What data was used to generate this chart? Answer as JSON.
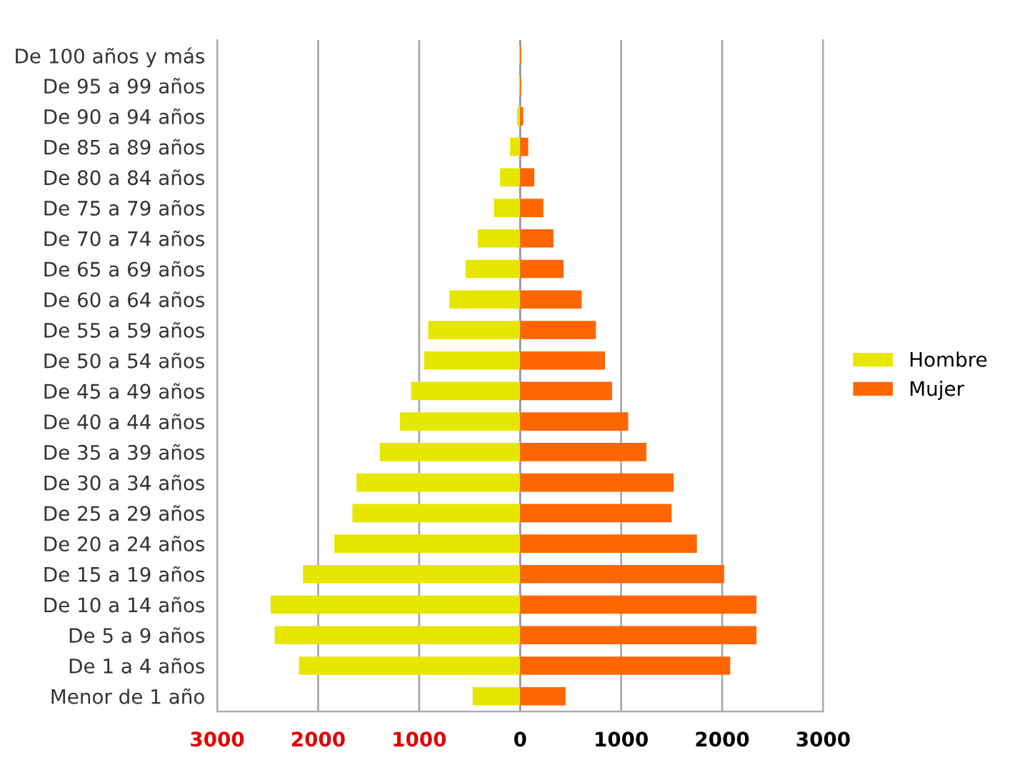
{
  "chart_data": {
    "type": "bar",
    "orientation": "horizontal",
    "categories": [
      "De 100 años y más",
      "De 95 a 99 años",
      "De 90 a 94 años",
      "De 85 a 89 años",
      "De 80 a 84 años",
      "De 75 a 79 años",
      "De 70 a 74 años",
      "De 65 a 69 años",
      "De 60 a 64 años",
      "De 55 a 59 años",
      "De 50 a 54 años",
      "De 45 a 49 años",
      "De 40 a 44 años",
      "De 35 a 39 años",
      "De 30 a 34 años",
      "De 25 a 29 años",
      "De 20 a 24 años",
      "De 15 a 19 años",
      "De 10 a 14 años",
      "De 5 a 9 años",
      "De 1 a 4 años",
      "Menor de 1 año"
    ],
    "series": [
      {
        "name": "Hombre",
        "color": "#e6e600",
        "values": [
          -10,
          -10,
          -30,
          -100,
          -200,
          -260,
          -420,
          -540,
          -700,
          -910,
          -950,
          -1080,
          -1190,
          -1390,
          -1620,
          -1660,
          -1840,
          -2150,
          -2470,
          -2430,
          -2190,
          -470
        ]
      },
      {
        "name": "Mujer",
        "color": "#ff6600",
        "values": [
          10,
          10,
          30,
          80,
          140,
          230,
          330,
          430,
          610,
          750,
          840,
          910,
          1070,
          1250,
          1520,
          1500,
          1750,
          2020,
          2340,
          2340,
          2080,
          450
        ]
      }
    ],
    "xlim": [
      -3000,
      3000
    ],
    "xticks": [
      {
        "value": -3000,
        "label": "3000"
      },
      {
        "value": -2000,
        "label": "2000"
      },
      {
        "value": -1000,
        "label": "1000"
      },
      0,
      1000,
      2000,
      3000
    ],
    "stacked": true,
    "grid": "x",
    "legend": "right"
  }
}
